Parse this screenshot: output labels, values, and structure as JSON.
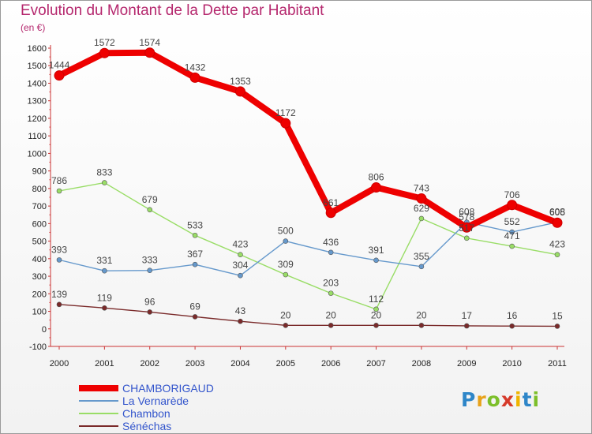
{
  "chart_data": {
    "type": "line",
    "title": "Evolution du Montant de la Dette par Habitant",
    "subtitle": "(en €)",
    "x": [
      "2000",
      "2001",
      "2002",
      "2003",
      "2004",
      "2005",
      "2006",
      "2007",
      "2008",
      "2009",
      "2010",
      "2011"
    ],
    "ylim": [
      -100,
      1600
    ],
    "yticks": [
      -100,
      0,
      100,
      200,
      300,
      400,
      500,
      600,
      700,
      800,
      900,
      1000,
      1100,
      1200,
      1300,
      1400,
      1500,
      1600
    ],
    "grid": false,
    "legend_position": "bottom-left",
    "series": [
      {
        "name": "CHAMBORIGAUD",
        "color": "#ee0000",
        "values": [
          1444,
          1572,
          1574,
          1432,
          1353,
          1172,
          661,
          806,
          743,
          578,
          706,
          605
        ]
      },
      {
        "name": "La Vernarède",
        "color": "#6699cc",
        "values": [
          393,
          331,
          333,
          367,
          304,
          500,
          436,
          391,
          355,
          608,
          552,
          608
        ]
      },
      {
        "name": "Chambon",
        "color": "#99dd66",
        "values": [
          786,
          833,
          679,
          533,
          423,
          309,
          203,
          112,
          629,
          517,
          471,
          423
        ]
      },
      {
        "name": "Sénéchas",
        "color": "#7a2a2a",
        "values": [
          139,
          119,
          96,
          69,
          43,
          20,
          20,
          20,
          20,
          17,
          16,
          15
        ]
      }
    ]
  },
  "logo": {
    "text": "Proxiti",
    "letters": [
      "P",
      "r",
      "o",
      "x",
      "i",
      "t",
      "i"
    ]
  }
}
